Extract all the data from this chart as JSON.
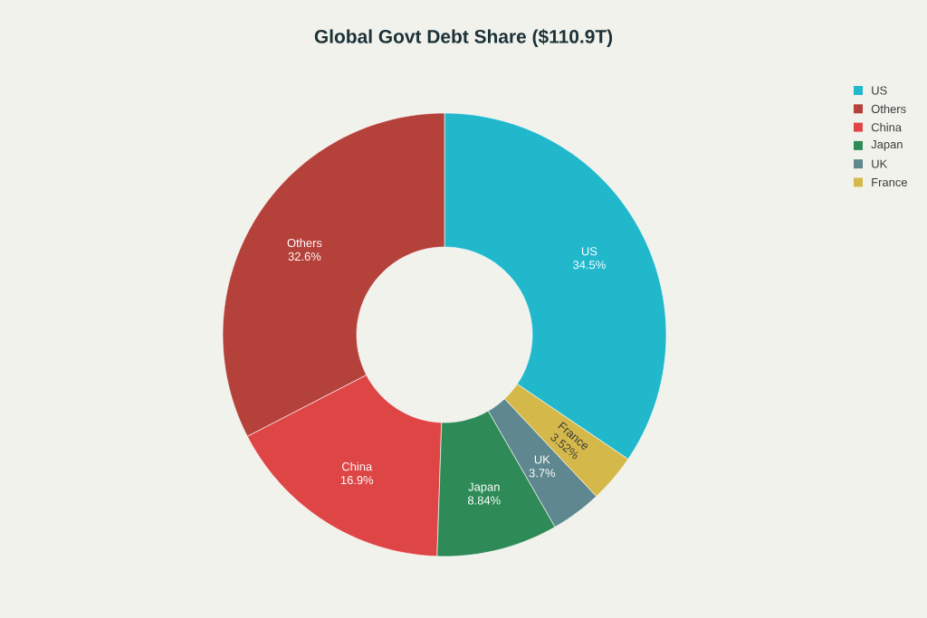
{
  "chart_data": {
    "type": "donut",
    "title": "Global Govt Debt Share ($110.9T)",
    "categories": [
      "US",
      "Others",
      "China",
      "Japan",
      "UK",
      "France"
    ],
    "values": [
      34.5,
      32.6,
      16.9,
      8.84,
      3.7,
      3.52
    ],
    "value_labels": [
      "34.5%",
      "32.6%",
      "16.9%",
      "8.84%",
      "3.7%",
      "3.52%"
    ],
    "colors": [
      "#21b8cc",
      "#b5413b",
      "#de4646",
      "#2e8b57",
      "#5e878f",
      "#d4b94a"
    ],
    "legend": "top right"
  }
}
